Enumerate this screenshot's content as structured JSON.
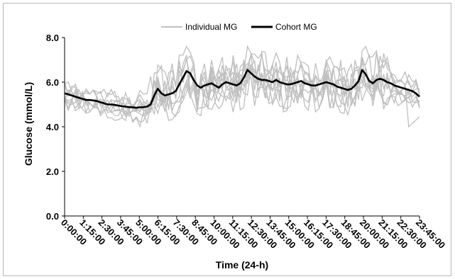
{
  "chart_data": {
    "type": "line",
    "xlabel": "Time (24-h)",
    "ylabel": "Glucose (mmol/L)",
    "ylim": [
      0,
      8
    ],
    "y_ticks": [
      "0.0",
      "2.0",
      "4.0",
      "6.0",
      "8.0"
    ],
    "x_tick_labels": [
      "0:00:00",
      "1:15:00",
      "2:30:00",
      "3:45:00",
      "5:00:00",
      "6:15:00",
      "7:30:00",
      "8:45:00",
      "10:00:00",
      "11:15:00",
      "12:30:00",
      "13:45:00",
      "15:00:00",
      "16:15:00",
      "17:30:00",
      "18:45:00",
      "20:00:00",
      "21:15:00",
      "22:30:00",
      "23:45:00"
    ],
    "x_interval_minutes": 15,
    "grid": false,
    "legend_position": "top",
    "legend": [
      {
        "label": "Individual MG",
        "color": "#bfbfbf"
      },
      {
        "label": "Cohort MG",
        "color": "#000000"
      }
    ],
    "series": [
      {
        "name": "Cohort MG",
        "color": "#000000",
        "values": [
          5.5,
          5.45,
          5.4,
          5.35,
          5.3,
          5.25,
          5.2,
          5.2,
          5.18,
          5.15,
          5.1,
          5.05,
          5.0,
          5.0,
          4.98,
          4.95,
          4.92,
          4.9,
          4.88,
          4.87,
          4.85,
          4.87,
          4.88,
          4.9,
          5.0,
          5.4,
          5.7,
          5.5,
          5.4,
          5.45,
          5.5,
          5.6,
          5.9,
          6.2,
          6.5,
          6.4,
          6.1,
          5.85,
          5.75,
          5.85,
          5.9,
          5.95,
          5.85,
          5.75,
          5.9,
          6.0,
          5.95,
          5.9,
          5.85,
          5.95,
          6.2,
          6.55,
          6.4,
          6.25,
          6.15,
          6.1,
          6.1,
          6.05,
          6.0,
          6.1,
          6.0,
          5.95,
          5.9,
          5.9,
          5.95,
          6.0,
          6.05,
          5.95,
          5.9,
          5.85,
          5.85,
          5.9,
          5.95,
          6.0,
          5.95,
          5.9,
          5.8,
          5.75,
          5.7,
          5.65,
          5.7,
          5.85,
          6.05,
          6.55,
          6.35,
          6.05,
          5.95,
          6.1,
          6.15,
          6.1,
          6.0,
          5.95,
          5.85,
          5.8,
          5.75,
          5.7,
          5.65,
          5.6,
          5.5,
          5.35
        ]
      }
    ],
    "individual_series_count": 10,
    "individual_color": "#bfbfbf"
  }
}
